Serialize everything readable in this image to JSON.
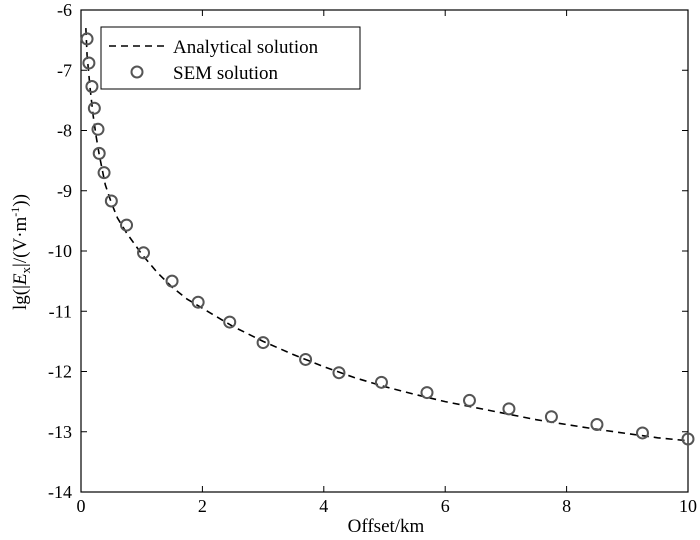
{
  "chart_data": {
    "type": "line",
    "title": "",
    "xlabel": "Offset/km",
    "ylabel": {
      "prefix": "lg(|",
      "var": "E",
      "sub": "x",
      "mid": "|/(V·m",
      "sup": "-1",
      "suffix": "))"
    },
    "xlim": [
      0,
      10
    ],
    "ylim": [
      -14,
      -6
    ],
    "xticks": [
      "0",
      "2",
      "4",
      "6",
      "8",
      "10"
    ],
    "yticks": [
      "-6",
      "-7",
      "-8",
      "-9",
      "-10",
      "-11",
      "-12",
      "-13",
      "-14"
    ],
    "grid": false,
    "legend_position": "top-left",
    "series": [
      {
        "name": "Analytical solution",
        "style": "dashed-line",
        "color": "#000000",
        "x": [
          0.08,
          0.1,
          0.15,
          0.2,
          0.25,
          0.3,
          0.4,
          0.5,
          0.6,
          0.75,
          1.0,
          1.25,
          1.5,
          1.75,
          2.0,
          2.5,
          3.0,
          3.5,
          4.0,
          4.5,
          5.0,
          5.5,
          6.0,
          6.5,
          7.0,
          7.5,
          8.0,
          8.5,
          9.0,
          9.5,
          10.0
        ],
        "y": [
          -6.3,
          -6.75,
          -7.3,
          -7.75,
          -8.1,
          -8.4,
          -8.9,
          -9.2,
          -9.45,
          -9.7,
          -10.05,
          -10.35,
          -10.6,
          -10.8,
          -10.95,
          -11.25,
          -11.5,
          -11.72,
          -11.92,
          -12.1,
          -12.25,
          -12.38,
          -12.5,
          -12.6,
          -12.7,
          -12.8,
          -12.88,
          -12.96,
          -13.03,
          -13.1,
          -13.15
        ]
      },
      {
        "name": "SEM solution",
        "style": "open-circle",
        "color": "#555555",
        "x": [
          0.1,
          0.13,
          0.18,
          0.22,
          0.28,
          0.3,
          0.38,
          0.5,
          0.75,
          1.03,
          1.5,
          1.93,
          2.45,
          3.0,
          3.7,
          4.25,
          4.95,
          5.7,
          6.4,
          7.05,
          7.75,
          8.5,
          9.25,
          10.0
        ],
        "y": [
          -6.48,
          -6.88,
          -7.27,
          -7.63,
          -7.98,
          -8.38,
          -8.7,
          -9.17,
          -9.57,
          -10.03,
          -10.5,
          -10.85,
          -11.18,
          -11.52,
          -11.8,
          -12.02,
          -12.18,
          -12.35,
          -12.48,
          -12.62,
          -12.75,
          -12.88,
          -13.02,
          -13.12
        ]
      }
    ]
  }
}
